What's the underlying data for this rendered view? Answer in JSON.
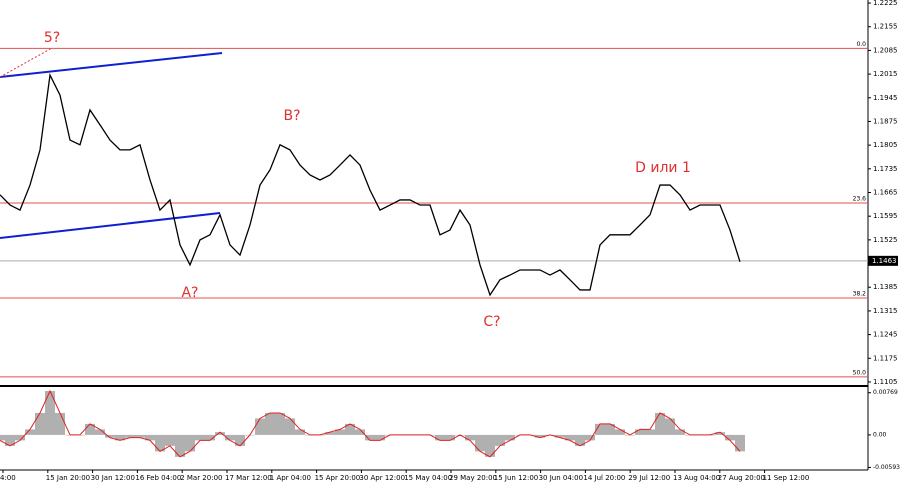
{
  "chart_data": {
    "type": "line",
    "series": [
      {
        "name": "price",
        "color": "#000000",
        "values": [
          1.1658,
          1.1628,
          1.1613,
          1.1687,
          1.1791,
          1.2012,
          1.1953,
          1.182,
          1.1806,
          1.1909,
          1.1865,
          1.182,
          1.1791,
          1.1791,
          1.1806,
          1.1702,
          1.1613,
          1.1643,
          1.151,
          1.1451,
          1.1525,
          1.154,
          1.1599,
          1.151,
          1.148,
          1.1569,
          1.1687,
          1.1732,
          1.1806,
          1.1791,
          1.1746,
          1.1717,
          1.1702,
          1.1717,
          1.1746,
          1.1776,
          1.1746,
          1.1672,
          1.1613,
          1.1628,
          1.1643,
          1.1643,
          1.1628,
          1.1628,
          1.154,
          1.1554,
          1.1613,
          1.1569,
          1.1451,
          1.1362,
          1.1407,
          1.1421,
          1.1436,
          1.1436,
          1.1436,
          1.1421,
          1.1436,
          1.1407,
          1.1377,
          1.1377,
          1.151,
          1.154,
          1.154,
          1.154,
          1.1569,
          1.1599,
          1.1687,
          1.1687,
          1.1658,
          1.1613,
          1.1628,
          1.1628,
          1.1628,
          1.1554,
          1.146
        ]
      }
    ],
    "oscillator": {
      "color": "#b0b0b0",
      "line_color": "#e02020",
      "values": [
        -0.001,
        -0.002,
        -0.001,
        0.001,
        0.004,
        0.008,
        0.004,
        0,
        0,
        0.002,
        0.001,
        -0.0005,
        -0.001,
        -0.0005,
        -0.0005,
        -0.001,
        -0.003,
        -0.002,
        -0.004,
        -0.003,
        -0.001,
        -0.001,
        0.0005,
        -0.001,
        -0.002,
        0,
        0.003,
        0.004,
        0.004,
        0.003,
        0.001,
        0,
        0,
        0.0005,
        0.001,
        0.002,
        0.001,
        -0.001,
        -0.001,
        0,
        0,
        0,
        0,
        0,
        -0.001,
        -0.001,
        0,
        -0.001,
        -0.003,
        -0.004,
        -0.002,
        -0.001,
        0,
        0,
        -0.0005,
        0,
        -0.0005,
        -0.001,
        -0.002,
        -0.001,
        0.002,
        0.002,
        0.001,
        0,
        0.001,
        0.001,
        0.004,
        0.003,
        0.001,
        0,
        0,
        0,
        0.0005,
        -0.001,
        -0.003
      ],
      "ylim": [
        -0.0064,
        0.00855
      ],
      "yticks": [
        0.00769,
        {
          "value": 0,
          "label": "0.00"
        },
        -0.00593
      ]
    },
    "ylim": [
      1.1096,
      1.2234
    ],
    "yticks": [
      1.2225,
      1.2155,
      1.2085,
      1.2015,
      1.1945,
      1.1875,
      1.1805,
      1.1735,
      1.1665,
      1.1595,
      1.1525,
      1.1385,
      1.1315,
      1.1245,
      1.1175,
      1.1105
    ],
    "x_labels": [
      "4:00",
      "15 Jan 20:00",
      "30 Jan 12:00",
      "16 Feb 04:00",
      "2 Mar 20:00",
      "17 Mar 12:00",
      "1 Apr 04:00",
      "15 Apr 20:00",
      "30 Apr 12:00",
      "15 May 04:00",
      "29 May 20:00",
      "15 Jun 12:00",
      "30 Jun 04:00",
      "14 Jul 20:00",
      "29 Jul 12:00",
      "13 Aug 04:00",
      "27 Aug 20:00",
      "11 Sep 12:00"
    ],
    "levels": [
      {
        "price": 1.2091,
        "label": "0.0"
      },
      {
        "price": 1.1634,
        "label": "23.6"
      },
      {
        "price": 1.1353,
        "label": "38.2"
      },
      {
        "price": 1.112,
        "label": "50.0"
      }
    ],
    "level_color": "#e05050",
    "last_price": 1.1463,
    "annotations": [
      "5?",
      "A?",
      "B?",
      "C?",
      "D или 1"
    ],
    "annotation_color": "#e03030"
  }
}
